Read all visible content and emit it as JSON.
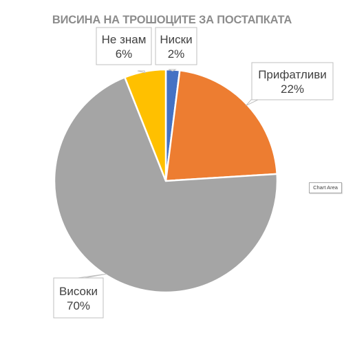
{
  "chart_data": {
    "type": "pie",
    "title": "ВИСИНА НА ТРОШОЦИТЕ ЗА ПОСТАПКАТА",
    "slices": [
      {
        "label": "Ниски",
        "value": 2,
        "value_label": "2%",
        "color": "#4472c4"
      },
      {
        "label": "Прифатливи",
        "value": 22,
        "value_label": "22%",
        "color": "#ed7d31"
      },
      {
        "label": "Високи",
        "value": 70,
        "value_label": "70%",
        "color": "#a5a5a5"
      },
      {
        "label": "Не знам",
        "value": 6,
        "value_label": "6%",
        "color": "#ffc000"
      }
    ],
    "legend": "none"
  },
  "tooltip": {
    "text": "Chart Area"
  }
}
